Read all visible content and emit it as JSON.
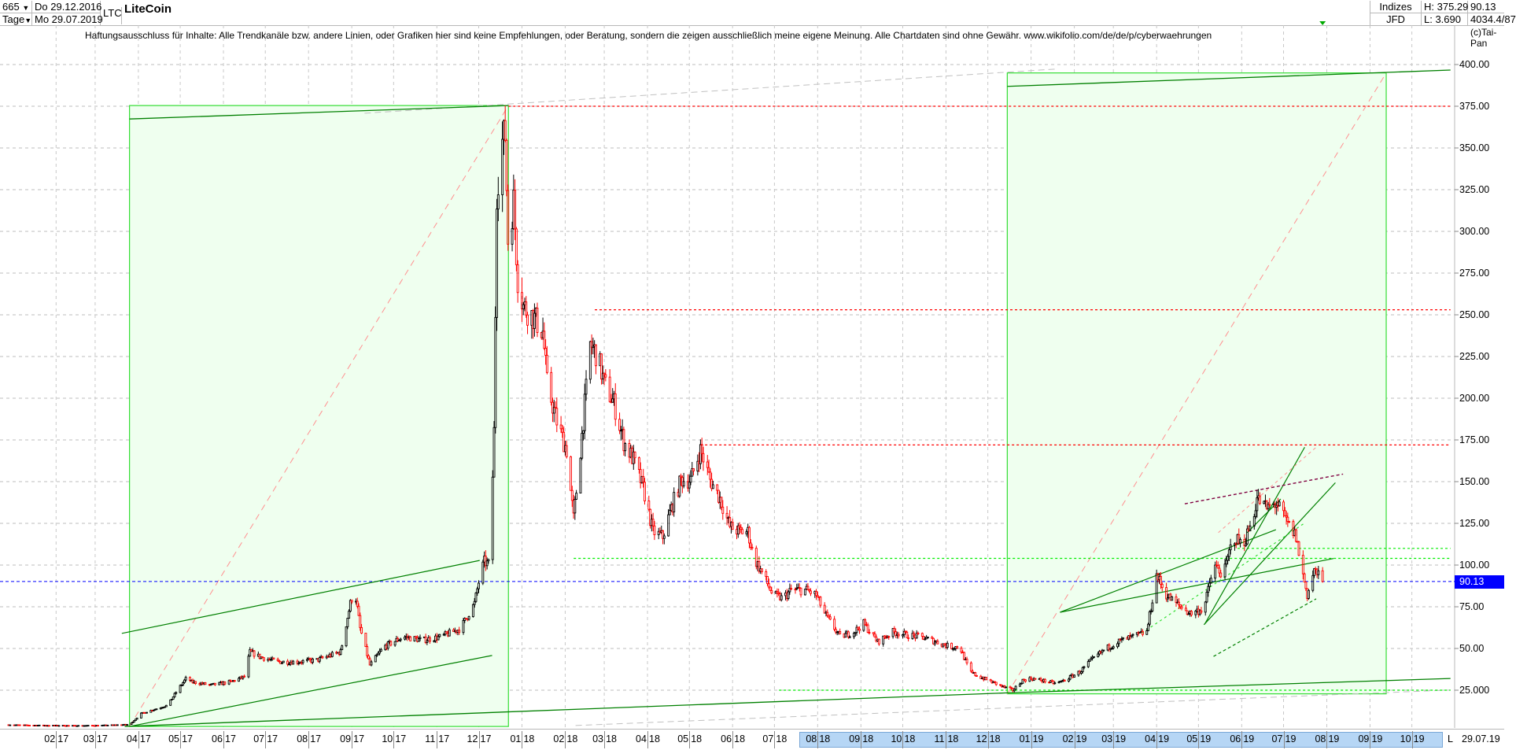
{
  "header": {
    "bars": "665",
    "period": "Tage",
    "start_date": "Do 29.12.2016",
    "end_date": "Mo 29.07.2019",
    "symbol": "LTC",
    "title": "LiteCoin",
    "market": "Indizes",
    "source": "JFD",
    "high": "H: 375.29",
    "low": "L: 3.690",
    "last": "90.13",
    "info": "4034.4/87",
    "copyright": "(c)Tai-Pan"
  },
  "disclaimer": "Haftungsausschluss für Inhalte: Alle Trendkanäle bzw. andere Linien, oder Grafiken hier sind keine Empfehlungen, oder Beratung, sondern die zeigen ausschließlich meine eigene Meinung. Alle Chartdaten sind ohne Gewähr.  www.wikifolio.com/de/de/p/cyberwaehrungen",
  "footer": {
    "scroll_label": "L",
    "last_date": "29.07.19"
  },
  "colors": {
    "up": "#000000",
    "down": "#ff0000",
    "box_fill": "#efffef",
    "box_border": "#33dd33",
    "trend": "#008000",
    "price_tag": "#0000ff",
    "scroll_band": "#b6d6f5"
  },
  "chart_data": {
    "type": "candlestick",
    "title": "LiteCoin",
    "ylim": [
      0,
      410
    ],
    "grid": true,
    "current_price": 90.13,
    "y_ticks": [
      "400.00",
      "375.00",
      "350.00",
      "325.00",
      "300.00",
      "275.00",
      "250.00",
      "225.00",
      "200.00",
      "175.00",
      "150.00",
      "125.00",
      "100.00",
      "75.00",
      "50.00",
      "25.000"
    ],
    "y_tick_values": [
      400,
      375,
      350,
      325,
      300,
      275,
      250,
      225,
      200,
      175,
      150,
      125,
      100,
      75,
      50,
      25
    ],
    "x_ticks": [
      {
        "m": "02",
        "y": "17",
        "date": "2017-02-01"
      },
      {
        "m": "03",
        "y": "17",
        "date": "2017-03-01"
      },
      {
        "m": "04",
        "y": "17",
        "date": "2017-04-01"
      },
      {
        "m": "05",
        "y": "17",
        "date": "2017-05-01"
      },
      {
        "m": "06",
        "y": "17",
        "date": "2017-06-01"
      },
      {
        "m": "07",
        "y": "17",
        "date": "2017-07-01"
      },
      {
        "m": "08",
        "y": "17",
        "date": "2017-08-01"
      },
      {
        "m": "09",
        "y": "17",
        "date": "2017-09-01"
      },
      {
        "m": "10",
        "y": "17",
        "date": "2017-10-01"
      },
      {
        "m": "11",
        "y": "17",
        "date": "2017-11-01"
      },
      {
        "m": "12",
        "y": "17",
        "date": "2017-12-01"
      },
      {
        "m": "01",
        "y": "18",
        "date": "2018-01-01"
      },
      {
        "m": "02",
        "y": "18",
        "date": "2018-02-01"
      },
      {
        "m": "03",
        "y": "18",
        "date": "2018-03-01"
      },
      {
        "m": "04",
        "y": "18",
        "date": "2018-04-01"
      },
      {
        "m": "05",
        "y": "18",
        "date": "2018-05-01"
      },
      {
        "m": "06",
        "y": "18",
        "date": "2018-06-01"
      },
      {
        "m": "07",
        "y": "18",
        "date": "2018-07-01"
      },
      {
        "m": "08",
        "y": "18",
        "date": "2018-08-01"
      },
      {
        "m": "09",
        "y": "18",
        "date": "2018-09-01"
      },
      {
        "m": "10",
        "y": "18",
        "date": "2018-10-01"
      },
      {
        "m": "11",
        "y": "18",
        "date": "2018-11-01"
      },
      {
        "m": "12",
        "y": "18",
        "date": "2018-12-01"
      },
      {
        "m": "01",
        "y": "19",
        "date": "2019-01-01"
      },
      {
        "m": "02",
        "y": "19",
        "date": "2019-02-01"
      },
      {
        "m": "03",
        "y": "19",
        "date": "2019-03-01"
      },
      {
        "m": "04",
        "y": "19",
        "date": "2019-04-01"
      },
      {
        "m": "05",
        "y": "19",
        "date": "2019-05-01"
      },
      {
        "m": "06",
        "y": "19",
        "date": "2019-06-01"
      },
      {
        "m": "07",
        "y": "19",
        "date": "2019-07-01"
      },
      {
        "m": "08",
        "y": "19",
        "date": "2019-08-01"
      },
      {
        "m": "09",
        "y": "19",
        "date": "2019-09-01"
      },
      {
        "m": "10",
        "y": "19",
        "date": "2019-10-01"
      }
    ],
    "horizontal_levels": [
      {
        "value": 375,
        "color": "#ff0000"
      },
      {
        "value": 253,
        "color": "#ff0000"
      },
      {
        "value": 172,
        "color": "#ff0000"
      },
      {
        "value": 110,
        "color": "#00ee00"
      },
      {
        "value": 104,
        "color": "#00ee00"
      },
      {
        "value": 25,
        "color": "#00ee00"
      }
    ],
    "approx_close": [
      [
        "2016-12-29",
        4.3
      ],
      [
        "2017-01-15",
        4.0
      ],
      [
        "2017-02-15",
        3.8
      ],
      [
        "2017-03-03",
        3.9
      ],
      [
        "2017-03-26",
        4.5
      ],
      [
        "2017-04-03",
        11
      ],
      [
        "2017-04-22",
        16
      ],
      [
        "2017-04-29",
        25
      ],
      [
        "2017-05-06",
        33
      ],
      [
        "2017-05-09",
        30
      ],
      [
        "2017-05-23",
        28
      ],
      [
        "2017-06-06",
        30
      ],
      [
        "2017-06-16",
        33
      ],
      [
        "2017-06-20",
        48
      ],
      [
        "2017-06-27",
        45
      ],
      [
        "2017-07-10",
        42
      ],
      [
        "2017-07-24",
        42
      ],
      [
        "2017-08-07",
        43
      ],
      [
        "2017-08-24",
        48
      ],
      [
        "2017-08-31",
        77
      ],
      [
        "2017-09-03",
        86
      ],
      [
        "2017-09-07",
        62
      ],
      [
        "2017-09-14",
        40
      ],
      [
        "2017-09-24",
        51
      ],
      [
        "2017-10-08",
        57
      ],
      [
        "2017-10-22",
        55
      ],
      [
        "2017-11-04",
        57
      ],
      [
        "2017-11-18",
        62
      ],
      [
        "2017-11-28",
        77
      ],
      [
        "2017-12-02",
        94
      ],
      [
        "2017-12-05",
        102
      ],
      [
        "2017-12-09",
        100
      ],
      [
        "2017-12-12",
        180
      ],
      [
        "2017-12-14",
        324
      ],
      [
        "2017-12-17",
        352
      ],
      [
        "2017-12-20",
        358
      ],
      [
        "2017-12-22",
        295
      ],
      [
        "2017-12-26",
        318
      ],
      [
        "2017-12-29",
        272
      ],
      [
        "2018-01-02",
        255
      ],
      [
        "2018-01-09",
        249
      ],
      [
        "2018-01-16",
        240
      ],
      [
        "2018-01-19",
        209
      ],
      [
        "2018-01-26",
        186
      ],
      [
        "2018-02-02",
        169
      ],
      [
        "2018-02-07",
        128
      ],
      [
        "2018-02-12",
        169
      ],
      [
        "2018-02-19",
        232
      ],
      [
        "2018-02-24",
        226
      ],
      [
        "2018-03-01",
        209
      ],
      [
        "2018-03-08",
        197
      ],
      [
        "2018-03-15",
        174
      ],
      [
        "2018-03-22",
        163
      ],
      [
        "2018-03-29",
        146
      ],
      [
        "2018-04-05",
        120
      ],
      [
        "2018-04-12",
        117
      ],
      [
        "2018-04-18",
        134
      ],
      [
        "2018-04-25",
        151
      ],
      [
        "2018-05-02",
        151
      ],
      [
        "2018-05-09",
        169
      ],
      [
        "2018-05-16",
        151
      ],
      [
        "2018-05-23",
        140
      ],
      [
        "2018-05-30",
        123
      ],
      [
        "2018-06-06",
        120
      ],
      [
        "2018-06-12",
        120
      ],
      [
        "2018-06-16",
        105
      ],
      [
        "2018-06-23",
        94
      ],
      [
        "2018-06-30",
        82
      ],
      [
        "2018-07-07",
        80
      ],
      [
        "2018-07-13",
        85
      ],
      [
        "2018-07-24",
        85
      ],
      [
        "2018-07-31",
        82
      ],
      [
        "2018-08-06",
        71
      ],
      [
        "2018-08-17",
        57
      ],
      [
        "2018-08-27",
        60
      ],
      [
        "2018-09-03",
        65
      ],
      [
        "2018-09-13",
        54
      ],
      [
        "2018-09-24",
        60
      ],
      [
        "2018-10-04",
        58
      ],
      [
        "2018-10-14",
        57
      ],
      [
        "2018-10-25",
        54
      ],
      [
        "2018-11-04",
        51
      ],
      [
        "2018-11-11",
        51
      ],
      [
        "2018-11-18",
        36
      ],
      [
        "2018-11-25",
        33
      ],
      [
        "2018-12-01",
        31
      ],
      [
        "2018-12-12",
        27
      ],
      [
        "2018-12-19",
        25
      ],
      [
        "2018-12-26",
        31
      ],
      [
        "2019-01-01",
        32
      ],
      [
        "2019-01-08",
        31
      ],
      [
        "2019-01-19",
        29
      ],
      [
        "2019-01-25",
        31
      ],
      [
        "2019-02-05",
        36
      ],
      [
        "2019-02-12",
        42
      ],
      [
        "2019-02-22",
        49
      ],
      [
        "2019-03-04",
        54
      ],
      [
        "2019-03-15",
        57
      ],
      [
        "2019-03-25",
        60
      ],
      [
        "2019-04-01",
        94
      ],
      [
        "2019-04-08",
        82
      ],
      [
        "2019-04-15",
        77
      ],
      [
        "2019-04-25",
        71
      ],
      [
        "2019-05-05",
        74
      ],
      [
        "2019-05-12",
        100
      ],
      [
        "2019-05-19",
        94
      ],
      [
        "2019-05-26",
        117
      ],
      [
        "2019-06-02",
        112
      ],
      [
        "2019-06-09",
        128
      ],
      [
        "2019-06-12",
        140
      ],
      [
        "2019-06-19",
        134
      ],
      [
        "2019-06-26",
        137
      ],
      [
        "2019-07-03",
        126
      ],
      [
        "2019-07-10",
        117
      ],
      [
        "2019-07-13",
        102
      ],
      [
        "2019-07-18",
        82
      ],
      [
        "2019-07-23",
        97
      ],
      [
        "2019-07-29",
        90.13
      ]
    ]
  }
}
